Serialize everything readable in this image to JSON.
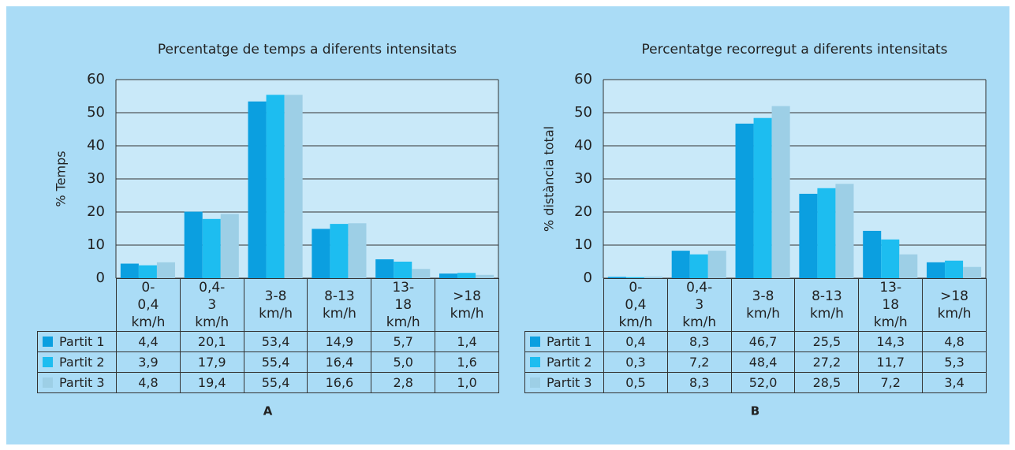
{
  "chart_data": [
    {
      "type": "bar",
      "title": "Percentatge de temps a diferents intensitats",
      "ylabel": "% Temps",
      "panel_label": "A",
      "categories": [
        "0-0,4 km/h",
        "0,4-3 km/h",
        "3-8 km/h",
        "8-13 km/h",
        "13-18 km/h",
        ">18 km/h"
      ],
      "series": [
        {
          "name": "Partit 1",
          "color": "#0b9fe0",
          "values": [
            4.4,
            20.1,
            53.4,
            14.9,
            5.7,
            1.4
          ],
          "value_labels": [
            "4,4",
            "20,1",
            "53,4",
            "14,9",
            "5,7",
            "1,4"
          ]
        },
        {
          "name": "Partit 2",
          "color": "#1dbdf0",
          "values": [
            3.9,
            17.9,
            55.4,
            16.4,
            5.0,
            1.6
          ],
          "value_labels": [
            "3,9",
            "17,9",
            "55,4",
            "16,4",
            "5,0",
            "1,6"
          ]
        },
        {
          "name": "Partit 3",
          "color": "#9dcfe6",
          "values": [
            4.8,
            19.4,
            55.4,
            16.6,
            2.8,
            1.0
          ],
          "value_labels": [
            "4,8",
            "19,4",
            "55,4",
            "16,6",
            "2,8",
            "1,0"
          ]
        }
      ],
      "ylim": [
        0,
        60
      ],
      "yticks": [
        0,
        10,
        20,
        30,
        40,
        50,
        60
      ],
      "grid": true
    },
    {
      "type": "bar",
      "title": "Percentatge recorregut a diferents intensitats",
      "ylabel": "% distància total",
      "panel_label": "B",
      "categories": [
        "0-0,4 km/h",
        "0,4-3 km/h",
        "3-8 km/h",
        "8-13 km/h",
        "13-18 km/h",
        ">18 km/h"
      ],
      "series": [
        {
          "name": "Partit 1",
          "color": "#0b9fe0",
          "values": [
            0.4,
            8.3,
            46.7,
            25.5,
            14.3,
            4.8
          ],
          "value_labels": [
            "0,4",
            "8,3",
            "46,7",
            "25,5",
            "14,3",
            "4,8"
          ]
        },
        {
          "name": "Partit 2",
          "color": "#1dbdf0",
          "values": [
            0.3,
            7.2,
            48.4,
            27.2,
            11.7,
            5.3
          ],
          "value_labels": [
            "0,3",
            "7,2",
            "48,4",
            "27,2",
            "11,7",
            "5,3"
          ]
        },
        {
          "name": "Partit 3",
          "color": "#9dcfe6",
          "values": [
            0.5,
            8.3,
            52.0,
            28.5,
            7.2,
            3.4
          ],
          "value_labels": [
            "0,5",
            "8,3",
            "52,0",
            "28,5",
            "7,2",
            "3,4"
          ]
        }
      ],
      "ylim": [
        0,
        60
      ],
      "yticks": [
        0,
        10,
        20,
        30,
        40,
        50,
        60
      ],
      "grid": true
    }
  ]
}
